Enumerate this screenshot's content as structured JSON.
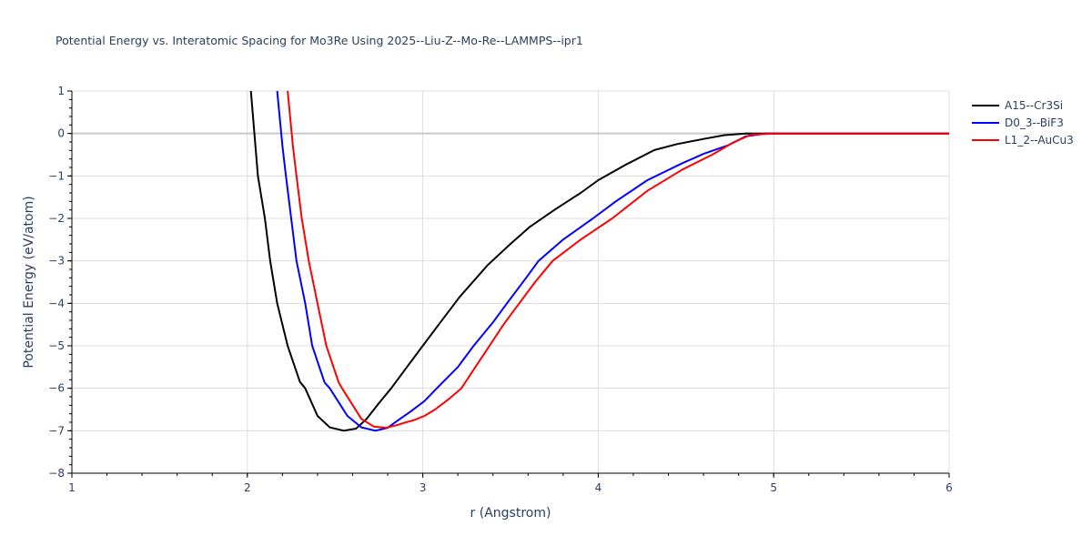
{
  "chart_data": {
    "type": "line",
    "title": "Potential Energy vs. Interatomic Spacing for Mo3Re Using 2025--Liu-Z--Mo-Re--LAMMPS--ipr1",
    "xlabel": "r (Angstrom)",
    "ylabel": "Potential Energy (eV/atom)",
    "xlim": [
      1,
      6
    ],
    "ylim": [
      -8,
      1
    ],
    "xticks": [
      1,
      2,
      3,
      4,
      5,
      6
    ],
    "xtick_labels": [
      "1",
      "2",
      "3",
      "4",
      "5",
      "6"
    ],
    "yticks": [
      1,
      0,
      -1,
      -2,
      -3,
      -4,
      -5,
      -6,
      -7,
      -8
    ],
    "ytick_labels": [
      "1",
      "0",
      "−1",
      "−2",
      "−3",
      "−4",
      "−5",
      "−6",
      "−7",
      "−8"
    ],
    "grid": true,
    "legend_position": "right-top",
    "series": [
      {
        "name": "A15--Cr3Si",
        "color": "#000000",
        "x": [
          2.02,
          2.06,
          2.1,
          2.13,
          2.17,
          2.23,
          2.3,
          2.33,
          2.4,
          2.47,
          2.55,
          2.62,
          2.68,
          2.75,
          2.82,
          2.91,
          3.0,
          3.1,
          3.21,
          3.37,
          3.5,
          3.61,
          3.75,
          3.9,
          4.0,
          4.15,
          4.32,
          4.45,
          4.6,
          4.72,
          4.84,
          5.0,
          6.0
        ],
        "y": [
          1.0,
          -1.0,
          -2.0,
          -3.0,
          -4.0,
          -5.0,
          -5.85,
          -6.0,
          -6.65,
          -6.92,
          -7.0,
          -6.95,
          -6.72,
          -6.35,
          -6.0,
          -5.5,
          -5.0,
          -4.45,
          -3.85,
          -3.1,
          -2.6,
          -2.2,
          -1.8,
          -1.4,
          -1.1,
          -0.75,
          -0.39,
          -0.25,
          -0.13,
          -0.04,
          0.0,
          0.0,
          0.0
        ]
      },
      {
        "name": "D0_3--BiF3",
        "color": "#0000ff",
        "x": [
          2.17,
          2.2,
          2.22,
          2.25,
          2.28,
          2.33,
          2.37,
          2.44,
          2.47,
          2.57,
          2.65,
          2.73,
          2.8,
          2.85,
          2.93,
          3.01,
          3.08,
          3.2,
          3.29,
          3.4,
          3.48,
          3.58,
          3.66,
          3.8,
          3.97,
          4.1,
          4.28,
          4.48,
          4.6,
          4.74,
          4.84,
          4.95,
          6.0
        ],
        "y": [
          1.0,
          -0.3,
          -1.0,
          -2.0,
          -3.0,
          -4.0,
          -5.0,
          -5.86,
          -6.0,
          -6.65,
          -6.92,
          -7.0,
          -6.93,
          -6.78,
          -6.55,
          -6.3,
          -6.0,
          -5.5,
          -5.0,
          -4.45,
          -4.0,
          -3.45,
          -3.0,
          -2.5,
          -2.0,
          -1.6,
          -1.1,
          -0.7,
          -0.48,
          -0.28,
          -0.07,
          0.0,
          0.0
        ]
      },
      {
        "name": "L1_2--AuCu3",
        "color": "#ff0000",
        "x": [
          2.23,
          2.26,
          2.28,
          2.31,
          2.35,
          2.4,
          2.45,
          2.52,
          2.54,
          2.65,
          2.72,
          2.79,
          2.85,
          2.89,
          2.95,
          3.01,
          3.07,
          3.15,
          3.22,
          3.3,
          3.38,
          3.46,
          3.55,
          3.64,
          3.74,
          3.9,
          4.08,
          4.28,
          4.48,
          4.65,
          4.77,
          4.87,
          5.0,
          6.0
        ],
        "y": [
          1.0,
          -0.3,
          -1.0,
          -2.0,
          -3.0,
          -4.0,
          -5.0,
          -5.86,
          -6.0,
          -6.72,
          -6.9,
          -6.93,
          -6.87,
          -6.82,
          -6.75,
          -6.65,
          -6.5,
          -6.25,
          -6.0,
          -5.5,
          -5.0,
          -4.5,
          -4.0,
          -3.5,
          -3.0,
          -2.5,
          -2.0,
          -1.35,
          -0.85,
          -0.5,
          -0.21,
          -0.03,
          0.0,
          0.0
        ]
      }
    ]
  },
  "legend": {
    "items": [
      {
        "label": "A15--Cr3Si",
        "color": "#000000"
      },
      {
        "label": "D0_3--BiF3",
        "color": "#0000ff"
      },
      {
        "label": "L1_2--AuCu3",
        "color": "#ff0000"
      }
    ]
  },
  "colors": {
    "text": "#2a3f5f",
    "grid": "#dcdcdc",
    "zeroline": "#c8c8c8",
    "axis": "#000000"
  }
}
